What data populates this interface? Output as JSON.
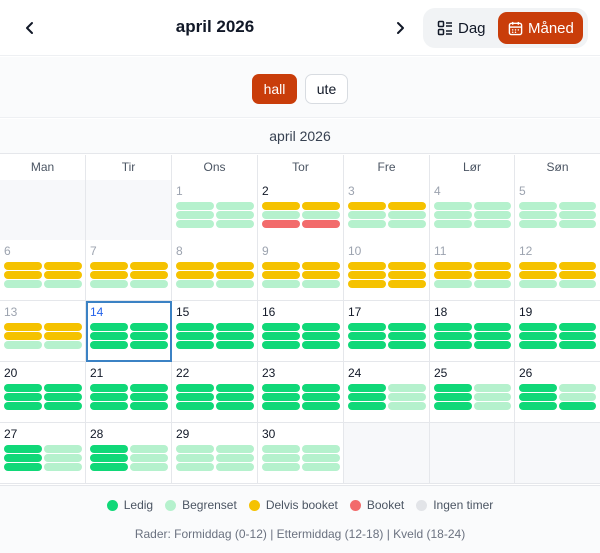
{
  "header": {
    "title": "april 2026",
    "view_day": "Dag",
    "view_month": "Måned",
    "active_view": "month"
  },
  "filters": [
    {
      "label": "hall",
      "active": true
    },
    {
      "label": "ute",
      "active": false
    }
  ],
  "month_label": "april 2026",
  "weekdays": [
    "Man",
    "Tir",
    "Ons",
    "Tor",
    "Fre",
    "Lør",
    "Søn"
  ],
  "colors": {
    "ledig": "#10d878",
    "begrenset": "#b5f1cd",
    "delvis": "#f5c200",
    "booket": "#f26b6b",
    "ingen": "#e2e4e8",
    "accent": "#c93d0a",
    "today": "#3b82c4"
  },
  "today": 14,
  "weeks": [
    [
      {
        "day": null
      },
      {
        "day": null
      },
      {
        "day": 1,
        "muted": true,
        "rows": [
          [
            "begrenset",
            "begrenset"
          ],
          [
            "begrenset",
            "begrenset"
          ],
          [
            "begrenset",
            "begrenset"
          ]
        ]
      },
      {
        "day": 2,
        "muted": false,
        "rows": [
          [
            "delvis",
            "delvis"
          ],
          [
            "begrenset",
            "begrenset"
          ],
          [
            "booket",
            "booket"
          ]
        ]
      },
      {
        "day": 3,
        "muted": true,
        "rows": [
          [
            "delvis",
            "delvis"
          ],
          [
            "begrenset",
            "begrenset"
          ],
          [
            "begrenset",
            "begrenset"
          ]
        ]
      },
      {
        "day": 4,
        "muted": true,
        "rows": [
          [
            "begrenset",
            "begrenset"
          ],
          [
            "begrenset",
            "begrenset"
          ],
          [
            "begrenset",
            "begrenset"
          ]
        ]
      },
      {
        "day": 5,
        "muted": true,
        "rows": [
          [
            "begrenset",
            "begrenset"
          ],
          [
            "begrenset",
            "begrenset"
          ],
          [
            "begrenset",
            "begrenset"
          ]
        ]
      }
    ],
    [
      {
        "day": 6,
        "muted": true,
        "rows": [
          [
            "delvis",
            "delvis"
          ],
          [
            "delvis",
            "delvis"
          ],
          [
            "begrenset",
            "begrenset"
          ]
        ]
      },
      {
        "day": 7,
        "muted": true,
        "rows": [
          [
            "delvis",
            "delvis"
          ],
          [
            "delvis",
            "delvis"
          ],
          [
            "begrenset",
            "begrenset"
          ]
        ]
      },
      {
        "day": 8,
        "muted": true,
        "rows": [
          [
            "delvis",
            "delvis"
          ],
          [
            "delvis",
            "delvis"
          ],
          [
            "begrenset",
            "begrenset"
          ]
        ]
      },
      {
        "day": 9,
        "muted": true,
        "rows": [
          [
            "delvis",
            "delvis"
          ],
          [
            "delvis",
            "delvis"
          ],
          [
            "begrenset",
            "begrenset"
          ]
        ]
      },
      {
        "day": 10,
        "muted": true,
        "rows": [
          [
            "delvis",
            "delvis"
          ],
          [
            "delvis",
            "delvis"
          ],
          [
            "delvis",
            "delvis"
          ]
        ]
      },
      {
        "day": 11,
        "muted": true,
        "rows": [
          [
            "delvis",
            "delvis"
          ],
          [
            "delvis",
            "delvis"
          ],
          [
            "begrenset",
            "begrenset"
          ]
        ]
      },
      {
        "day": 12,
        "muted": true,
        "rows": [
          [
            "delvis",
            "delvis"
          ],
          [
            "delvis",
            "delvis"
          ],
          [
            "begrenset",
            "begrenset"
          ]
        ]
      }
    ],
    [
      {
        "day": 13,
        "muted": true,
        "rows": [
          [
            "delvis",
            "delvis"
          ],
          [
            "delvis",
            "delvis"
          ],
          [
            "begrenset",
            "begrenset"
          ]
        ]
      },
      {
        "day": 14,
        "muted": false,
        "rows": [
          [
            "ledig",
            "ledig"
          ],
          [
            "ledig",
            "ledig"
          ],
          [
            "ledig",
            "ledig"
          ]
        ]
      },
      {
        "day": 15,
        "muted": false,
        "rows": [
          [
            "ledig",
            "ledig"
          ],
          [
            "ledig",
            "ledig"
          ],
          [
            "ledig",
            "ledig"
          ]
        ]
      },
      {
        "day": 16,
        "muted": false,
        "rows": [
          [
            "ledig",
            "ledig"
          ],
          [
            "ledig",
            "ledig"
          ],
          [
            "ledig",
            "ledig"
          ]
        ]
      },
      {
        "day": 17,
        "muted": false,
        "rows": [
          [
            "ledig",
            "ledig"
          ],
          [
            "ledig",
            "ledig"
          ],
          [
            "ledig",
            "ledig"
          ]
        ]
      },
      {
        "day": 18,
        "muted": false,
        "rows": [
          [
            "ledig",
            "ledig"
          ],
          [
            "ledig",
            "ledig"
          ],
          [
            "ledig",
            "ledig"
          ]
        ]
      },
      {
        "day": 19,
        "muted": false,
        "rows": [
          [
            "ledig",
            "ledig"
          ],
          [
            "ledig",
            "ledig"
          ],
          [
            "ledig",
            "ledig"
          ]
        ]
      }
    ],
    [
      {
        "day": 20,
        "muted": false,
        "rows": [
          [
            "ledig",
            "ledig"
          ],
          [
            "ledig",
            "ledig"
          ],
          [
            "ledig",
            "ledig"
          ]
        ]
      },
      {
        "day": 21,
        "muted": false,
        "rows": [
          [
            "ledig",
            "ledig"
          ],
          [
            "ledig",
            "ledig"
          ],
          [
            "ledig",
            "ledig"
          ]
        ]
      },
      {
        "day": 22,
        "muted": false,
        "rows": [
          [
            "ledig",
            "ledig"
          ],
          [
            "ledig",
            "ledig"
          ],
          [
            "ledig",
            "ledig"
          ]
        ]
      },
      {
        "day": 23,
        "muted": false,
        "rows": [
          [
            "ledig",
            "ledig"
          ],
          [
            "ledig",
            "ledig"
          ],
          [
            "ledig",
            "ledig"
          ]
        ]
      },
      {
        "day": 24,
        "muted": false,
        "rows": [
          [
            "ledig",
            "begrenset"
          ],
          [
            "ledig",
            "begrenset"
          ],
          [
            "ledig",
            "begrenset"
          ]
        ]
      },
      {
        "day": 25,
        "muted": false,
        "rows": [
          [
            "ledig",
            "begrenset"
          ],
          [
            "ledig",
            "begrenset"
          ],
          [
            "ledig",
            "begrenset"
          ]
        ]
      },
      {
        "day": 26,
        "muted": false,
        "rows": [
          [
            "ledig",
            "begrenset"
          ],
          [
            "ledig",
            "begrenset"
          ],
          [
            "ledig",
            "ledig"
          ]
        ]
      }
    ],
    [
      {
        "day": 27,
        "muted": false,
        "rows": [
          [
            "ledig",
            "begrenset"
          ],
          [
            "ledig",
            "begrenset"
          ],
          [
            "ledig",
            "begrenset"
          ]
        ]
      },
      {
        "day": 28,
        "muted": false,
        "rows": [
          [
            "ledig",
            "begrenset"
          ],
          [
            "ledig",
            "begrenset"
          ],
          [
            "ledig",
            "begrenset"
          ]
        ]
      },
      {
        "day": 29,
        "muted": false,
        "rows": [
          [
            "begrenset",
            "begrenset"
          ],
          [
            "begrenset",
            "begrenset"
          ],
          [
            "begrenset",
            "begrenset"
          ]
        ]
      },
      {
        "day": 30,
        "muted": false,
        "rows": [
          [
            "begrenset",
            "begrenset"
          ],
          [
            "begrenset",
            "begrenset"
          ],
          [
            "begrenset",
            "begrenset"
          ]
        ]
      },
      {
        "day": null
      },
      {
        "day": null
      },
      {
        "day": null
      }
    ]
  ],
  "legend": [
    {
      "label": "Ledig",
      "status": "ledig"
    },
    {
      "label": "Begrenset",
      "status": "begrenset"
    },
    {
      "label": "Delvis booket",
      "status": "delvis"
    },
    {
      "label": "Booket",
      "status": "booket"
    },
    {
      "label": "Ingen timer",
      "status": "ingen"
    }
  ],
  "legend_note": "Rader: Formiddag (0-12) | Ettermiddag (12-18) | Kveld (18-24)"
}
